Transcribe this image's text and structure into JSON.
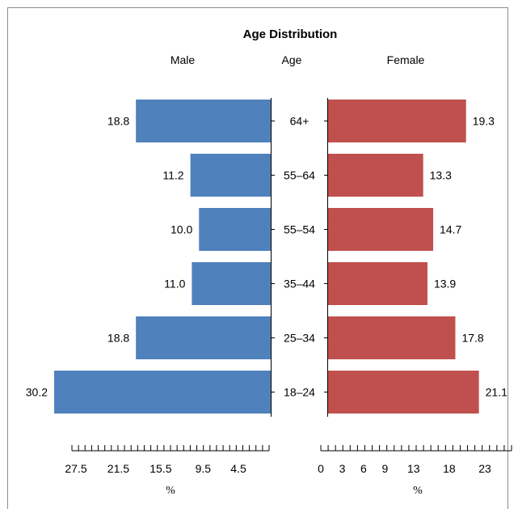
{
  "chart_data": {
    "type": "bar",
    "orientation": "horizontal",
    "layout": "population-pyramid",
    "title": "Age Distribution",
    "center_label": "Age",
    "categories": [
      "64+",
      "55–64",
      "55–54",
      "35–44",
      "25–34",
      "18–24"
    ],
    "series": [
      {
        "name": "Male",
        "values": [
          18.8,
          11.2,
          10.0,
          11.0,
          18.8,
          30.2
        ],
        "color": "#4f81bd",
        "side": "left"
      },
      {
        "name": "Female",
        "values": [
          19.3,
          13.3,
          14.7,
          13.9,
          17.8,
          21.1
        ],
        "color": "#c0504d",
        "side": "right"
      }
    ],
    "data_labels": {
      "male": [
        "18.8",
        "11.2",
        "10.0",
        "11.0",
        "18.8",
        "30.2"
      ],
      "female": [
        "19.3",
        "13.3",
        "14.7",
        "13.9",
        "17.8",
        "21.1"
      ]
    },
    "male_axis": {
      "ticks": [
        "27.5",
        "21.5",
        "15.5",
        "9.5",
        "4.5"
      ],
      "tick_values": [
        27.5,
        21.5,
        15.5,
        9.5,
        4.5
      ],
      "label": "%",
      "reversed": true,
      "range": [
        0,
        30.2
      ]
    },
    "female_axis": {
      "ticks": [
        "0",
        "3",
        "6",
        "9",
        "13",
        "18",
        "23"
      ],
      "tick_values": [
        0,
        3,
        6,
        9,
        13,
        18,
        23
      ],
      "label": "%",
      "range": [
        0,
        26
      ]
    },
    "grid": false,
    "legend": "none"
  }
}
